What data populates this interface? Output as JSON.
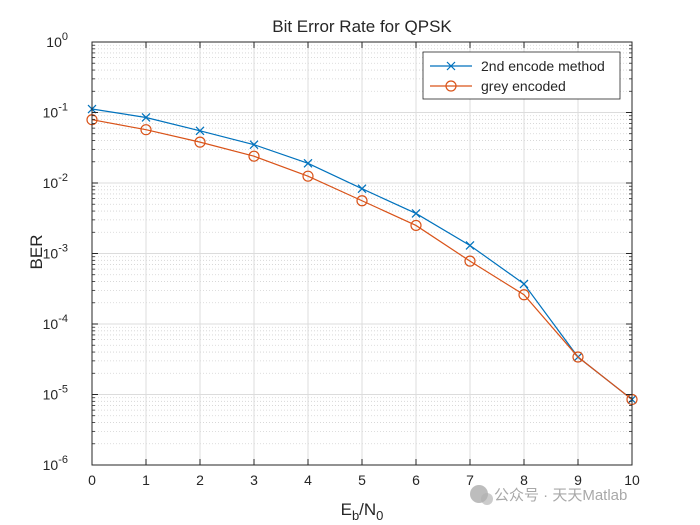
{
  "chart_data": {
    "type": "line",
    "title": "Bit Error Rate for QPSK",
    "xlabel": {
      "main": "E",
      "sub1": "b",
      "sep": "/N",
      "sub2": "0"
    },
    "ylabel": "BER",
    "xlim": [
      0,
      10
    ],
    "ylim": [
      1e-06,
      1
    ],
    "yscale": "log",
    "grid": true,
    "minor_grid": true,
    "legend_position": "top-right",
    "x_ticks": [
      "0",
      "1",
      "2",
      "3",
      "4",
      "5",
      "6",
      "7",
      "8",
      "9",
      "10"
    ],
    "y_ticks": [
      {
        "base": "10",
        "exp": "-6",
        "value": 1e-06
      },
      {
        "base": "10",
        "exp": "-5",
        "value": 1e-05
      },
      {
        "base": "10",
        "exp": "-4",
        "value": 0.0001
      },
      {
        "base": "10",
        "exp": "-3",
        "value": 0.001
      },
      {
        "base": "10",
        "exp": "-2",
        "value": 0.01
      },
      {
        "base": "10",
        "exp": "-1",
        "value": 0.1
      },
      {
        "base": "10",
        "exp": "0",
        "value": 1
      }
    ],
    "x": [
      0,
      1,
      2,
      3,
      4,
      5,
      6,
      7,
      8,
      9,
      10
    ],
    "series": [
      {
        "name": "2nd encode method",
        "color": "#0072BD",
        "marker": "x",
        "values": [
          0.112,
          0.085,
          0.055,
          0.035,
          0.019,
          0.0083,
          0.0037,
          0.0013,
          0.00037,
          3.4e-05,
          8.5e-06
        ]
      },
      {
        "name": "grey encoded",
        "color": "#D95319",
        "marker": "o",
        "values": [
          0.079,
          0.057,
          0.038,
          0.024,
          0.0125,
          0.0056,
          0.0025,
          0.00078,
          0.00026,
          3.4e-05,
          8.5e-06
        ]
      }
    ]
  },
  "watermark": {
    "text": "公众号 · 天天Matlab"
  }
}
